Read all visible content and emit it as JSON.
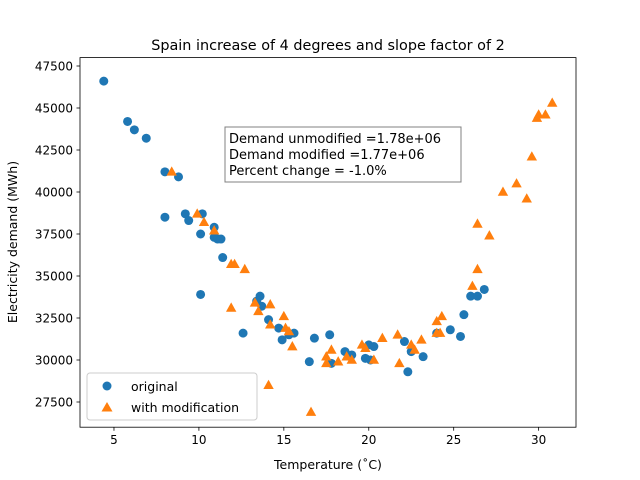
{
  "chart_data": {
    "type": "scatter",
    "title": "Spain increase of 4 degrees and slope factor of 2",
    "xlabel": "Temperature (˚C)",
    "ylabel": "Electricity demand (MWh)",
    "xlim": [
      3.0,
      32.2
    ],
    "ylim": [
      26000,
      48000
    ],
    "xticks": [
      5,
      10,
      15,
      20,
      25,
      30
    ],
    "yticks": [
      27500,
      30000,
      32500,
      35000,
      37500,
      40000,
      42500,
      45000,
      47500
    ],
    "ytick_labels": [
      "27500",
      "30000",
      "32500",
      "35000",
      "37500",
      "40000",
      "42500",
      "45000",
      "47500"
    ],
    "legend_position": "lower-left",
    "annotation": {
      "lines": [
        "Demand unmodified =1.78e+06",
        "Demand modified =1.77e+06",
        "Percent change = -1.0%"
      ]
    },
    "series": [
      {
        "name": "original",
        "marker": "circle",
        "color": "#1f77b4",
        "points": [
          [
            4.4,
            46600
          ],
          [
            5.8,
            44200
          ],
          [
            6.2,
            43700
          ],
          [
            6.9,
            43200
          ],
          [
            8.0,
            41200
          ],
          [
            8.8,
            40900
          ],
          [
            8.0,
            38500
          ],
          [
            9.2,
            38700
          ],
          [
            9.4,
            38300
          ],
          [
            10.2,
            38700
          ],
          [
            10.1,
            37500
          ],
          [
            10.9,
            37900
          ],
          [
            10.9,
            37300
          ],
          [
            11.1,
            37200
          ],
          [
            11.3,
            37200
          ],
          [
            11.4,
            36100
          ],
          [
            10.1,
            33900
          ],
          [
            12.6,
            31600
          ],
          [
            13.4,
            33500
          ],
          [
            13.6,
            33800
          ],
          [
            13.7,
            33200
          ],
          [
            14.1,
            32400
          ],
          [
            14.7,
            31900
          ],
          [
            14.9,
            31200
          ],
          [
            15.3,
            31500
          ],
          [
            15.6,
            31600
          ],
          [
            16.5,
            29900
          ],
          [
            16.8,
            31300
          ],
          [
            17.7,
            31500
          ],
          [
            17.8,
            29800
          ],
          [
            18.6,
            30500
          ],
          [
            19.0,
            30300
          ],
          [
            19.8,
            30100
          ],
          [
            20.0,
            30900
          ],
          [
            20.1,
            30000
          ],
          [
            20.3,
            30800
          ],
          [
            22.1,
            31100
          ],
          [
            22.3,
            29300
          ],
          [
            22.5,
            30500
          ],
          [
            23.2,
            30200
          ],
          [
            24.0,
            31600
          ],
          [
            24.8,
            31800
          ],
          [
            25.4,
            31400
          ],
          [
            25.6,
            32700
          ],
          [
            26.0,
            33800
          ],
          [
            26.4,
            33800
          ],
          [
            26.8,
            34200
          ]
        ]
      },
      {
        "name": "with modification",
        "marker": "triangle",
        "color": "#ff7f0e",
        "points": [
          [
            8.4,
            41200
          ],
          [
            9.9,
            38700
          ],
          [
            10.3,
            38200
          ],
          [
            10.9,
            37700
          ],
          [
            11.9,
            35700
          ],
          [
            12.1,
            35700
          ],
          [
            12.7,
            35400
          ],
          [
            11.9,
            33100
          ],
          [
            13.3,
            33400
          ],
          [
            13.5,
            32900
          ],
          [
            14.2,
            33300
          ],
          [
            14.2,
            32100
          ],
          [
            15.0,
            32600
          ],
          [
            15.1,
            31900
          ],
          [
            15.3,
            31700
          ],
          [
            15.5,
            30800
          ],
          [
            14.1,
            28500
          ],
          [
            16.6,
            26900
          ],
          [
            17.5,
            29800
          ],
          [
            17.5,
            30200
          ],
          [
            17.8,
            30600
          ],
          [
            18.2,
            29900
          ],
          [
            18.7,
            30200
          ],
          [
            19.0,
            30000
          ],
          [
            19.6,
            30900
          ],
          [
            19.8,
            30700
          ],
          [
            20.3,
            30000
          ],
          [
            20.8,
            31300
          ],
          [
            21.7,
            31500
          ],
          [
            21.8,
            29800
          ],
          [
            22.5,
            30900
          ],
          [
            22.7,
            30600
          ],
          [
            23.1,
            31200
          ],
          [
            24.0,
            31600
          ],
          [
            24.0,
            32300
          ],
          [
            24.3,
            32600
          ],
          [
            24.2,
            31600
          ],
          [
            26.1,
            34400
          ],
          [
            26.4,
            35400
          ],
          [
            26.4,
            38100
          ],
          [
            27.1,
            37400
          ],
          [
            27.9,
            40000
          ],
          [
            28.7,
            40500
          ],
          [
            29.3,
            39600
          ],
          [
            29.6,
            42100
          ],
          [
            29.9,
            44400
          ],
          [
            30.0,
            44600
          ],
          [
            30.4,
            44600
          ],
          [
            30.8,
            45300
          ]
        ]
      }
    ]
  }
}
